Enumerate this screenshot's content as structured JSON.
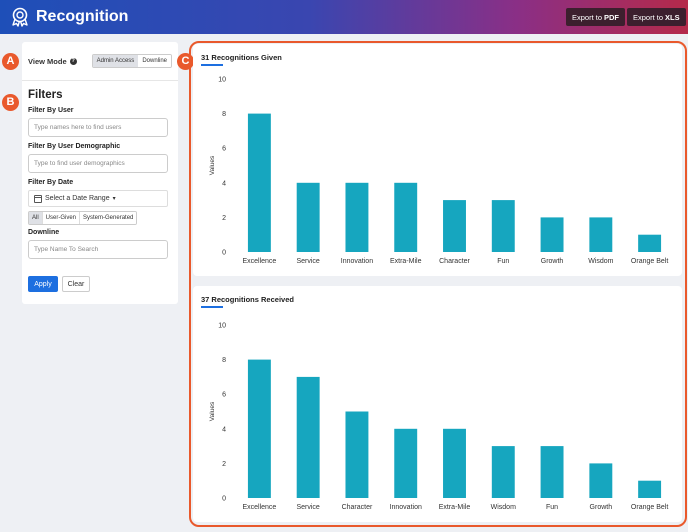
{
  "header": {
    "title": "Recognition",
    "export_pdf_prefix": "Export to",
    "export_pdf_suffix": "PDF",
    "export_xls_prefix": "Export to",
    "export_xls_suffix": "XLS"
  },
  "badges": {
    "a": "A",
    "b": "B",
    "c": "C"
  },
  "view_mode": {
    "label": "View Mode",
    "options": [
      "Admin Access",
      "Downline"
    ],
    "selected": "Admin Access"
  },
  "filters": {
    "title": "Filters",
    "by_user_label": "Filter By User",
    "by_user_placeholder": "Type names here to find users",
    "by_demo_label": "Filter By User Demographic",
    "by_demo_placeholder": "Type to find user demographics",
    "by_date_label": "Filter By Date",
    "date_button": "Select a Date Range",
    "source_options": [
      "All",
      "User-Given",
      "System-Generated"
    ],
    "source_selected": "All",
    "downline_label": "Downline",
    "downline_placeholder": "Type Name To Search",
    "apply": "Apply",
    "clear": "Clear"
  },
  "colors": {
    "bar": "#16a6bf",
    "accent": "#1d6fe0",
    "badge": "#e9592c"
  },
  "chart_data": [
    {
      "type": "bar",
      "title": "31 Recognitions Given",
      "ylabel": "Values",
      "ylim": [
        0,
        10
      ],
      "yticks": [
        0,
        2,
        4,
        6,
        8,
        10
      ],
      "categories": [
        "Excellence",
        "Service",
        "Innovation",
        "Extra-Mile",
        "Character",
        "Fun",
        "Growth",
        "Wisdom",
        "Orange Belt"
      ],
      "values": [
        8,
        4,
        4,
        4,
        3,
        3,
        2,
        2,
        1
      ]
    },
    {
      "type": "bar",
      "title": "37 Recognitions Received",
      "ylabel": "Values",
      "ylim": [
        0,
        10
      ],
      "yticks": [
        0,
        2,
        4,
        6,
        8,
        10
      ],
      "categories": [
        "Excellence",
        "Service",
        "Character",
        "Innovation",
        "Extra-Mile",
        "Wisdom",
        "Fun",
        "Growth",
        "Orange Belt"
      ],
      "values": [
        8,
        7,
        5,
        4,
        4,
        3,
        3,
        2,
        1
      ]
    }
  ]
}
